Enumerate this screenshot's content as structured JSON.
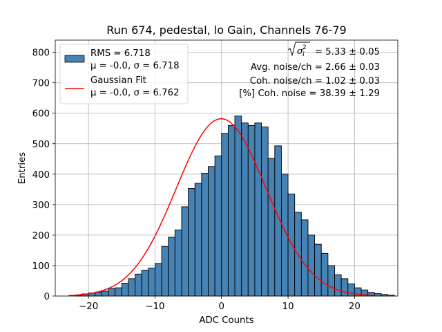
{
  "chart_data": {
    "type": "bar",
    "title": "Run 674, pedestal, lo Gain, Channels 76-79",
    "xlabel": "ADC Counts",
    "ylabel": "Entries",
    "xlim": [
      -25,
      26.5
    ],
    "ylim": [
      0,
      840
    ],
    "xticks": [
      -20,
      -10,
      0,
      10,
      20
    ],
    "yticks": [
      0,
      100,
      200,
      300,
      400,
      500,
      600,
      700,
      800
    ],
    "grid": true,
    "bar_color": "#4682b4",
    "fit_color": "#ff0000",
    "histogram": {
      "bin_start": -22,
      "bin_width": 1,
      "counts": [
        3,
        7,
        10,
        13,
        16,
        25,
        27,
        42,
        57,
        72,
        85,
        92,
        107,
        163,
        193,
        217,
        293,
        353,
        370,
        403,
        425,
        460,
        534,
        560,
        591,
        568,
        560,
        568,
        555,
        452,
        493,
        400,
        335,
        275,
        250,
        200,
        170,
        140,
        100,
        70,
        57,
        40,
        27,
        20,
        12,
        8,
        5,
        3
      ]
    },
    "fit": {
      "name": "Gaussian Fit",
      "mu": -0.05,
      "sigma": 6.762,
      "amplitude": 582,
      "x_range": [
        -23,
        23
      ]
    },
    "legend": {
      "location": "upper left",
      "entries": [
        {
          "kind": "patch",
          "line1": "RMS = 6.718",
          "line2": "μ = -0.0, σ = 6.718"
        },
        {
          "kind": "line",
          "line1": "Gaussian Fit",
          "line2": "μ = -0.0, σ = 6.762"
        }
      ]
    },
    "annotations": {
      "sigma_value": "= 5.33 ± 0.05",
      "avg_noise": "Avg. noise/ch = 2.66 ± 0.03",
      "coh_noise": "Coh. noise/ch = 1.02 ± 0.03",
      "coh_pct": "[%] Coh. noise = 38.39 ± 1.29"
    }
  }
}
